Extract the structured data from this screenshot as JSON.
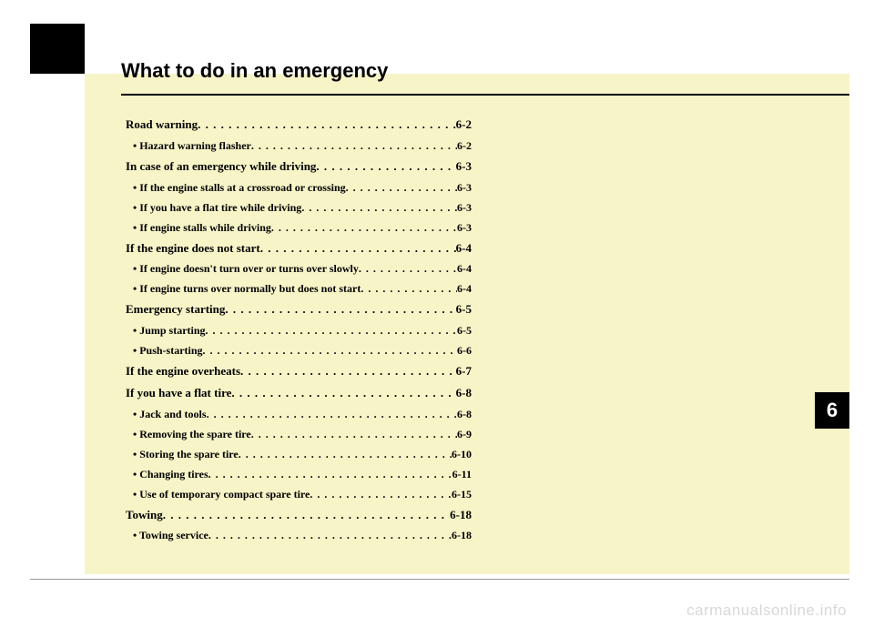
{
  "chapter": {
    "title": "What to do in an emergency",
    "number": "6"
  },
  "toc": [
    {
      "type": "main",
      "label": "Road warning",
      "page": "6-2"
    },
    {
      "type": "sub",
      "label": "• Hazard warning flasher",
      "page": "6-2"
    },
    {
      "type": "main",
      "label": "In case of an emergency while driving",
      "page": "6-3"
    },
    {
      "type": "sub",
      "label": "• If the engine stalls at a crossroad or crossing",
      "page": "6-3"
    },
    {
      "type": "sub",
      "label": "• If you have a flat tire while driving",
      "page": "6-3"
    },
    {
      "type": "sub",
      "label": "• If engine stalls while driving",
      "page": "6-3"
    },
    {
      "type": "main",
      "label": "If the engine does not start",
      "page": "6-4"
    },
    {
      "type": "sub",
      "label": "• If engine doesn't turn over or turns over slowly",
      "page": "6-4"
    },
    {
      "type": "sub",
      "label": "• If engine turns over normally but does not start",
      "page": "6-4"
    },
    {
      "type": "main",
      "label": "Emergency starting",
      "page": "6-5"
    },
    {
      "type": "sub",
      "label": "• Jump starting",
      "page": "6-5"
    },
    {
      "type": "sub",
      "label": "• Push-starting",
      "page": "6-6"
    },
    {
      "type": "main",
      "label": "If the engine overheats",
      "page": "6-7"
    },
    {
      "type": "main",
      "label": "If you have a flat tire",
      "page": "6-8"
    },
    {
      "type": "sub",
      "label": "• Jack and tools",
      "page": "6-8"
    },
    {
      "type": "sub",
      "label": "• Removing the spare tire",
      "page": "6-9"
    },
    {
      "type": "sub",
      "label": "• Storing the spare tire",
      "page": "6-10"
    },
    {
      "type": "sub",
      "label": "• Changing tires",
      "page": "6-11"
    },
    {
      "type": "sub",
      "label": "• Use of temporary compact spare tire",
      "page": "6-15"
    },
    {
      "type": "main",
      "label": "Towing",
      "page": "6-18"
    },
    {
      "type": "sub",
      "label": "• Towing service",
      "page": "6-18"
    }
  ],
  "watermark": "carmanualsonline.info",
  "colors": {
    "yellow_bg": "#f7f4c8",
    "black": "#000000",
    "white": "#ffffff",
    "watermark_color": "#d8d8d8"
  }
}
